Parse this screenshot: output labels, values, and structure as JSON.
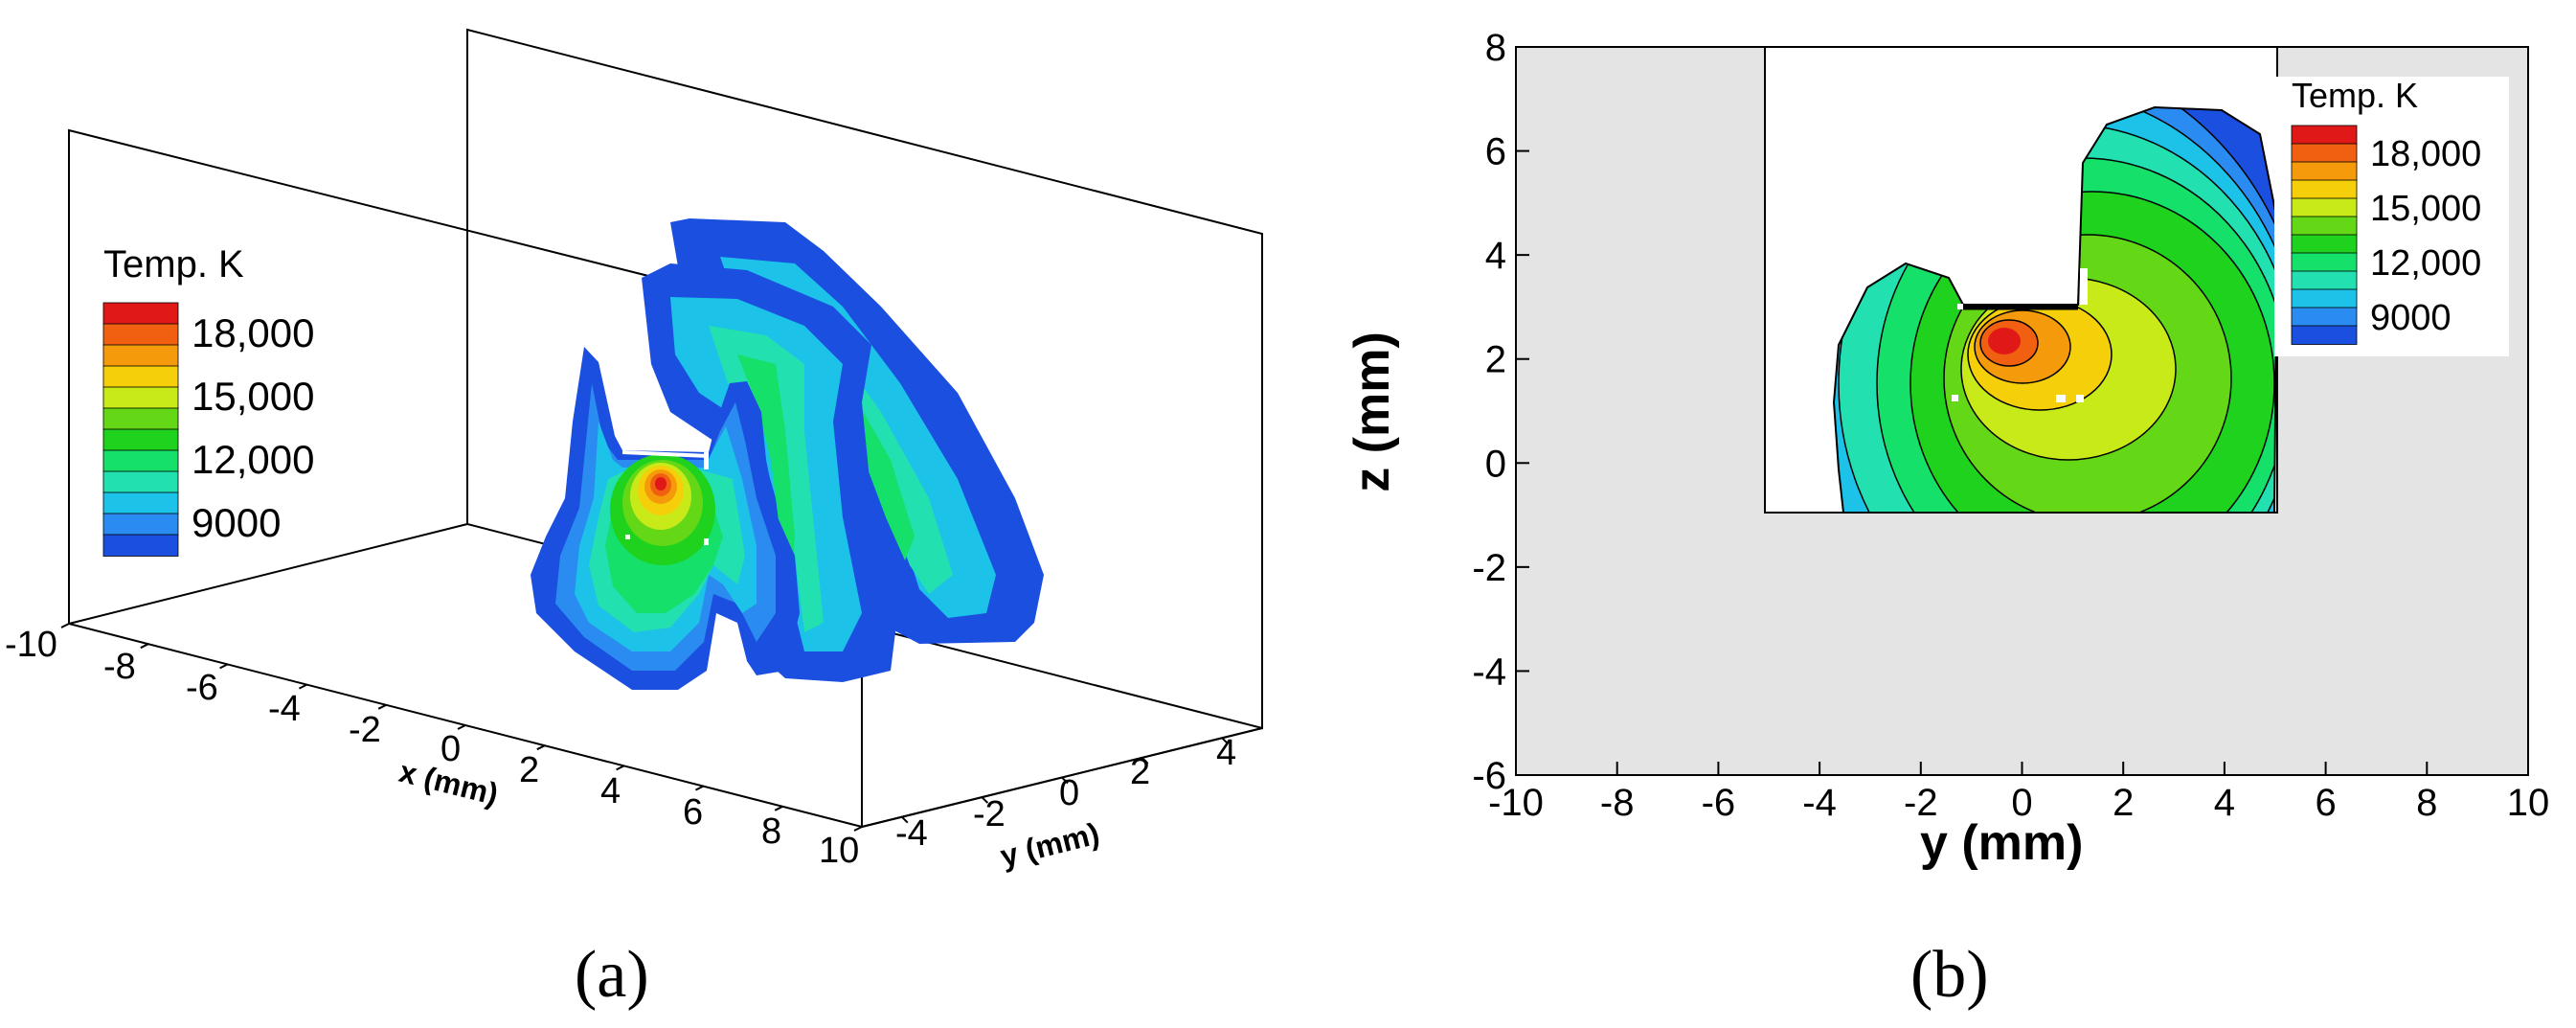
{
  "colors": {
    "temp_scale": [
      "#1a4fe0",
      "#2a8cf0",
      "#1cc2e8",
      "#22e0b0",
      "#14e06a",
      "#1ed21e",
      "#64d816",
      "#c8ea18",
      "#f5d00a",
      "#f59a0a",
      "#f06010",
      "#e01818"
    ],
    "background_region": "#e4e4e4"
  },
  "chart_data": [
    {
      "panel_label": "(a)",
      "type": "heatmap",
      "projection": "3d",
      "legend": {
        "title": "Temp. K",
        "ticks": [
          "18,000",
          "15,000",
          "12,000",
          "9000"
        ],
        "placement": "left"
      },
      "x_axis": {
        "label": "x (mm)",
        "ticks": [
          "-10",
          "-8",
          "-6",
          "-4",
          "-2",
          "0",
          "2",
          "4",
          "6",
          "8",
          "10"
        ],
        "range": [
          -10,
          10
        ]
      },
      "y_axis": {
        "label": "y (mm)",
        "ticks": [
          "-4",
          "-2",
          "0",
          "2",
          "4"
        ],
        "range": [
          -5,
          5
        ]
      }
    },
    {
      "panel_label": "(b)",
      "type": "heatmap",
      "legend": {
        "title": "Temp. K",
        "ticks": [
          "18,000",
          "15,000",
          "12,000",
          "9000"
        ],
        "placement": "top-right"
      },
      "x_axis": {
        "label": "y (mm)",
        "ticks": [
          "-10",
          "-8",
          "-6",
          "-4",
          "-2",
          "0",
          "2",
          "4",
          "6",
          "8",
          "10"
        ],
        "range": [
          -10,
          10
        ]
      },
      "y_axis": {
        "label": "z (mm)",
        "ticks": [
          "-6",
          "-4",
          "-2",
          "0",
          "2",
          "4",
          "6",
          "8"
        ],
        "range": [
          -6,
          8
        ]
      },
      "peak_temperature_location": {
        "y": 0.4,
        "z": 2.2
      }
    }
  ]
}
